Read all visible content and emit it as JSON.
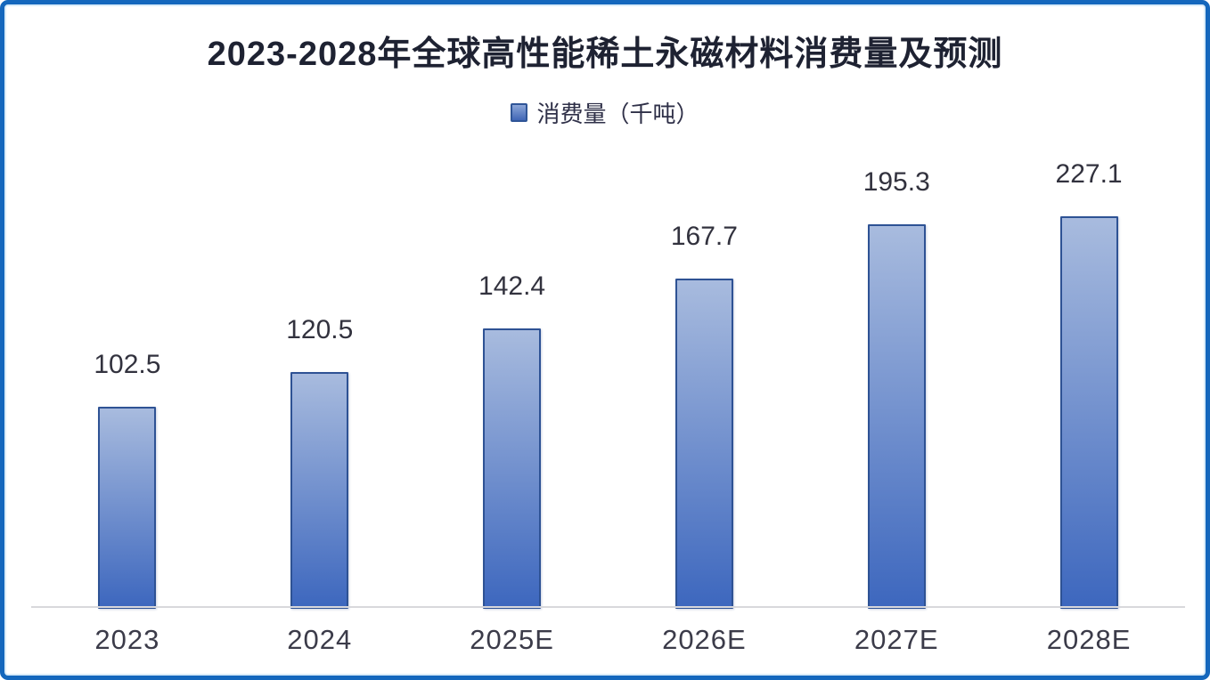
{
  "frame": {
    "border_color": "#1467bd",
    "background_color": "#ffffff"
  },
  "title": "2023-2028年全球高性能稀土永磁材料消费量及预测",
  "legend": {
    "label": "消费量（千吨）",
    "marker_border_color": "#2f5597",
    "marker_fill_top": "#8ca6d8",
    "marker_fill_bottom": "#4066b6"
  },
  "chart_data": {
    "type": "bar",
    "title": "2023-2028年全球高性能稀土永磁材料消费量及预测",
    "legend_entries": [
      "消费量（千吨）"
    ],
    "legend_position": "top",
    "categories": [
      "2023",
      "2024",
      "2025E",
      "2026E",
      "2027E",
      "2028E"
    ],
    "values": [
      102.5,
      120.5,
      142.4,
      167.7,
      195.3,
      227.1
    ],
    "series_name": "消费量（千吨）",
    "unit": "千吨",
    "ylim": [
      0,
      230
    ],
    "grid": false,
    "data_labels": true,
    "bar_color_gradient_top": "#a8bbde",
    "bar_color_gradient_bottom": "#3d67be",
    "bar_border_color": "#2e5294",
    "axis_line_color": "#d8d8dc",
    "label_color": "#32323e",
    "tick_label_color": "#3b3b49"
  }
}
